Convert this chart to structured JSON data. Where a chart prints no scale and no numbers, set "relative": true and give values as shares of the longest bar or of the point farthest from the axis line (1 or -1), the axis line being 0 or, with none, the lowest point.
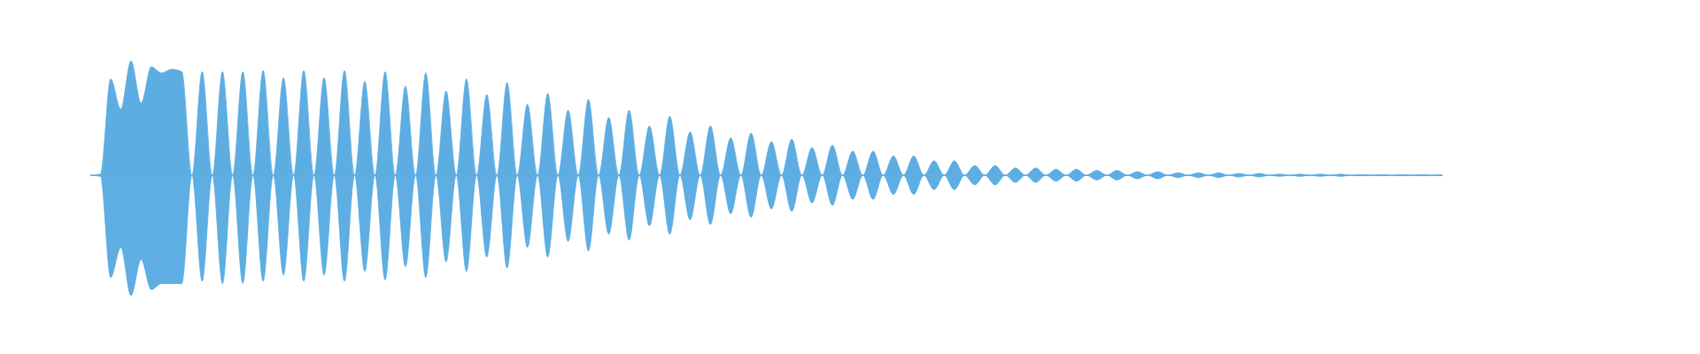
{
  "chart_data": {
    "type": "area",
    "relative": true,
    "categories": [
      null,
      null,
      null,
      null,
      null,
      null,
      null,
      null,
      null,
      null,
      null,
      null,
      null,
      null,
      null,
      null,
      null,
      null,
      null,
      null,
      null,
      null,
      null,
      null,
      null,
      null,
      null,
      null,
      null,
      null,
      null,
      null,
      null,
      null,
      null,
      null,
      null,
      null,
      null,
      null,
      null,
      null,
      null,
      null,
      null,
      null,
      null,
      null,
      null,
      null,
      null,
      null,
      null,
      null,
      null,
      null,
      null,
      null,
      null,
      null,
      null,
      null,
      null,
      null,
      null,
      null,
      null,
      null,
      null,
      null,
      null,
      null,
      null,
      null,
      null,
      null,
      null,
      null,
      null,
      null,
      null,
      null,
      null,
      null,
      null,
      null,
      null,
      null,
      null,
      null,
      null,
      null,
      null,
      null,
      null,
      null,
      null,
      null,
      null,
      null,
      null,
      null,
      null,
      null,
      null,
      null,
      null,
      null,
      null,
      null,
      null,
      null,
      null,
      null,
      null,
      null,
      null,
      null,
      null,
      null,
      null,
      null,
      null,
      null,
      null,
      null,
      null,
      null,
      null,
      null,
      null,
      null,
      null,
      null
    ],
    "series": [
      {
        "color": "#5dade2",
        "values": [
          0,
          0.01,
          0.8,
          0.55,
          0.95,
          0.6,
          0.9,
          0.85,
          0.88,
          0.86,
          0,
          0.86,
          0,
          0.86,
          0,
          0.86,
          0,
          0.87,
          0,
          0.81,
          0,
          0.87,
          0,
          0.81,
          0,
          0.87,
          0,
          0.78,
          0,
          0.86,
          0,
          0.74,
          0,
          0.85,
          0,
          0.7,
          0,
          0.8,
          0,
          0.67,
          0,
          0.77,
          0,
          0.59,
          0,
          0.68,
          0,
          0.54,
          0,
          0.63,
          0,
          0.48,
          0,
          0.54,
          0,
          0.41,
          0,
          0.49,
          0,
          0.36,
          0,
          0.41,
          0,
          0.31,
          0,
          0.35,
          0,
          0.28,
          0,
          0.3,
          0,
          0.23,
          0,
          0.25,
          0,
          0.2,
          0,
          0.2,
          0,
          0.16,
          0,
          0.16,
          0,
          0.12,
          0,
          0.12,
          0,
          0.08,
          0,
          0.08,
          0,
          0.06,
          0,
          0.06,
          0,
          0.05,
          0,
          0.05,
          0,
          0.04,
          0,
          0.04,
          0,
          0.03,
          0,
          0.03,
          0,
          0.02,
          0,
          0.02,
          0,
          0.02,
          0,
          0.015,
          0,
          0.015,
          0,
          0.01,
          0,
          0.01,
          0,
          0.01,
          0,
          0.01,
          0,
          0.005,
          0,
          0.005,
          0,
          0.005,
          0,
          0.005,
          0,
          0.005
        ]
      },
      {
        "color": "#5eaee3",
        "values": [
          0,
          -0.01,
          -0.85,
          -0.6,
          -1,
          -0.7,
          -0.95,
          -0.9,
          -0.9,
          -0.9,
          0,
          -0.88,
          0,
          -0.9,
          0,
          -0.9,
          0,
          -0.88,
          0,
          -0.83,
          0,
          -0.88,
          0,
          -0.83,
          0,
          -0.88,
          0,
          -0.8,
          0,
          -0.87,
          0,
          -0.76,
          0,
          -0.85,
          0,
          -0.72,
          0,
          -0.8,
          0,
          -0.68,
          0,
          -0.77,
          0,
          -0.6,
          0,
          -0.68,
          0,
          -0.55,
          0,
          -0.63,
          0,
          -0.49,
          0,
          -0.54,
          0,
          -0.42,
          0,
          -0.49,
          0,
          -0.37,
          0,
          -0.41,
          0,
          -0.32,
          0,
          -0.35,
          0,
          -0.28,
          0,
          -0.3,
          0,
          -0.23,
          0,
          -0.25,
          0,
          -0.2,
          0,
          -0.2,
          0,
          -0.16,
          0,
          -0.16,
          0,
          -0.12,
          0,
          -0.12,
          0,
          -0.08,
          0,
          -0.08,
          0,
          -0.06,
          0,
          -0.06,
          0,
          -0.05,
          0,
          -0.05,
          0,
          -0.04,
          0,
          -0.04,
          0,
          -0.03,
          0,
          -0.03,
          0,
          -0.02,
          0,
          -0.02,
          0,
          -0.02,
          0,
          -0.015,
          0,
          -0.015,
          0,
          -0.01,
          0,
          -0.01,
          0,
          -0.01,
          0,
          -0.01,
          0,
          -0.005,
          0,
          -0.005,
          0,
          -0.005,
          0,
          -0.005,
          0,
          -0.005
        ]
      }
    ]
  }
}
